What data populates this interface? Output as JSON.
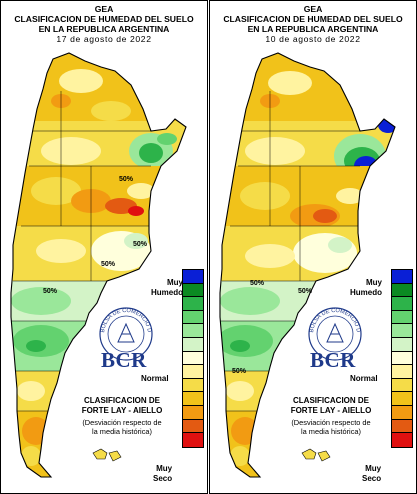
{
  "panels": [
    {
      "org": "GEA",
      "title_line1": "CLASIFICACION DE HUMEDAD DEL SUELO",
      "title_line2": "EN LA REPUBLICA ARGENTINA",
      "date": "17 de agosto de 2022",
      "contour_labels": [
        "50%",
        "50%",
        "50%",
        "50%"
      ]
    },
    {
      "org": "GEA",
      "title_line1": "CLASIFICACION DE HUMEDAD DEL SUELO",
      "title_line2": "EN LA REPUBLICA ARGENTINA",
      "date": "10 de agosto de 2022",
      "contour_labels": [
        "50%",
        "50%",
        "50%"
      ]
    }
  ],
  "legend": {
    "top_label_1": "Muy",
    "top_label_2": "Humedo",
    "mid_label": "Normal",
    "bottom_label_1": "Muy",
    "bottom_label_2": "Seco",
    "classes": [
      "#0a1fd6",
      "#0b8a22",
      "#2db34a",
      "#63d26f",
      "#9ae79a",
      "#d3f3c7",
      "#ffffdc",
      "#fff3a0",
      "#f5dc48",
      "#f1c21a",
      "#f29b12",
      "#e35a12",
      "#e01010"
    ]
  },
  "branding": {
    "logo_text": "BCR",
    "seal_text": "BOLSA DE COMERCIO DE ROSARIO",
    "classification_line1": "CLASIFICACION DE",
    "classification_line2": "FORTE LAY - AIELLO",
    "deviation_line1": "(Desviación respecto de",
    "deviation_line2": "la media histórica)"
  }
}
